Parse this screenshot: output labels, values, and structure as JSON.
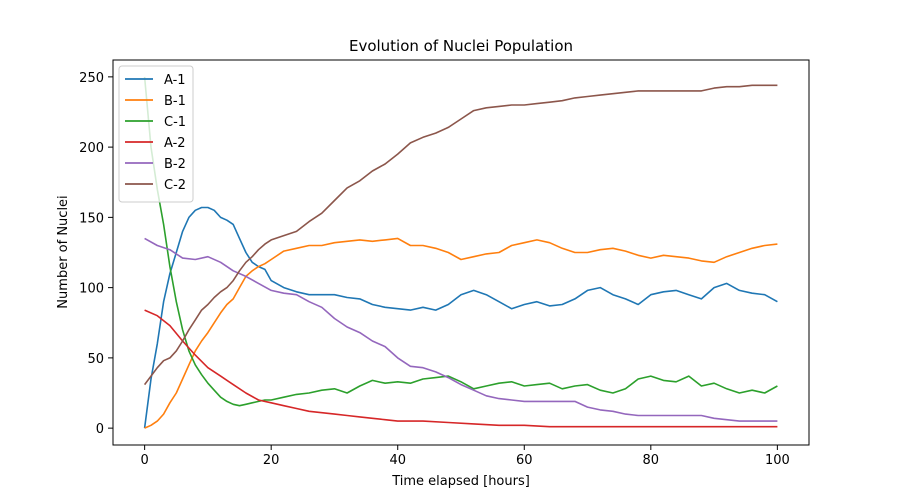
{
  "chart_data": {
    "type": "line",
    "title": "Evolution of Nuclei Population",
    "xlabel": "Time elapsed [hours]",
    "ylabel": "Number of Nuclei",
    "xlim": [
      -5,
      105
    ],
    "ylim": [
      -12,
      262
    ],
    "xticks": [
      0,
      20,
      40,
      60,
      80,
      100
    ],
    "yticks": [
      0,
      50,
      100,
      150,
      200,
      250
    ],
    "grid": false,
    "legend_position": "top-left",
    "series": [
      {
        "name": "A-1",
        "color": "#1f77b4",
        "points": [
          [
            0,
            0
          ],
          [
            1,
            35
          ],
          [
            2,
            60
          ],
          [
            3,
            90
          ],
          [
            4,
            110
          ],
          [
            5,
            125
          ],
          [
            6,
            140
          ],
          [
            7,
            150
          ],
          [
            8,
            155
          ],
          [
            9,
            157
          ],
          [
            10,
            157
          ],
          [
            11,
            155
          ],
          [
            12,
            150
          ],
          [
            13,
            148
          ],
          [
            14,
            145
          ],
          [
            15,
            135
          ],
          [
            16,
            125
          ],
          [
            17,
            118
          ],
          [
            18,
            115
          ],
          [
            19,
            113
          ],
          [
            20,
            105
          ],
          [
            22,
            100
          ],
          [
            24,
            97
          ],
          [
            26,
            95
          ],
          [
            28,
            95
          ],
          [
            30,
            95
          ],
          [
            32,
            93
          ],
          [
            34,
            92
          ],
          [
            36,
            88
          ],
          [
            38,
            86
          ],
          [
            40,
            85
          ],
          [
            42,
            84
          ],
          [
            44,
            86
          ],
          [
            46,
            84
          ],
          [
            48,
            88
          ],
          [
            50,
            95
          ],
          [
            52,
            98
          ],
          [
            54,
            95
          ],
          [
            56,
            90
          ],
          [
            58,
            85
          ],
          [
            60,
            88
          ],
          [
            62,
            90
          ],
          [
            64,
            87
          ],
          [
            66,
            88
          ],
          [
            68,
            92
          ],
          [
            70,
            98
          ],
          [
            72,
            100
          ],
          [
            74,
            95
          ],
          [
            76,
            92
          ],
          [
            78,
            88
          ],
          [
            80,
            95
          ],
          [
            82,
            97
          ],
          [
            84,
            98
          ],
          [
            86,
            95
          ],
          [
            88,
            92
          ],
          [
            90,
            100
          ],
          [
            92,
            103
          ],
          [
            94,
            98
          ],
          [
            96,
            96
          ],
          [
            98,
            95
          ],
          [
            100,
            90
          ]
        ]
      },
      {
        "name": "B-1",
        "color": "#ff7f0e",
        "points": [
          [
            0,
            0
          ],
          [
            1,
            2
          ],
          [
            2,
            5
          ],
          [
            3,
            10
          ],
          [
            4,
            18
          ],
          [
            5,
            25
          ],
          [
            6,
            35
          ],
          [
            7,
            45
          ],
          [
            8,
            55
          ],
          [
            9,
            62
          ],
          [
            10,
            68
          ],
          [
            11,
            75
          ],
          [
            12,
            82
          ],
          [
            13,
            88
          ],
          [
            14,
            92
          ],
          [
            15,
            100
          ],
          [
            16,
            108
          ],
          [
            17,
            112
          ],
          [
            18,
            115
          ],
          [
            19,
            117
          ],
          [
            20,
            120
          ],
          [
            22,
            126
          ],
          [
            24,
            128
          ],
          [
            26,
            130
          ],
          [
            28,
            130
          ],
          [
            30,
            132
          ],
          [
            32,
            133
          ],
          [
            34,
            134
          ],
          [
            36,
            133
          ],
          [
            38,
            134
          ],
          [
            40,
            135
          ],
          [
            42,
            130
          ],
          [
            44,
            130
          ],
          [
            46,
            128
          ],
          [
            48,
            125
          ],
          [
            50,
            120
          ],
          [
            52,
            122
          ],
          [
            54,
            124
          ],
          [
            56,
            125
          ],
          [
            58,
            130
          ],
          [
            60,
            132
          ],
          [
            62,
            134
          ],
          [
            64,
            132
          ],
          [
            66,
            128
          ],
          [
            68,
            125
          ],
          [
            70,
            125
          ],
          [
            72,
            127
          ],
          [
            74,
            128
          ],
          [
            76,
            126
          ],
          [
            78,
            123
          ],
          [
            80,
            121
          ],
          [
            82,
            123
          ],
          [
            84,
            122
          ],
          [
            86,
            121
          ],
          [
            88,
            119
          ],
          [
            90,
            118
          ],
          [
            92,
            122
          ],
          [
            94,
            125
          ],
          [
            96,
            128
          ],
          [
            98,
            130
          ],
          [
            100,
            131
          ]
        ]
      },
      {
        "name": "C-1",
        "color": "#2ca02c",
        "points": [
          [
            0,
            250
          ],
          [
            1,
            200
          ],
          [
            2,
            170
          ],
          [
            3,
            145
          ],
          [
            4,
            115
          ],
          [
            5,
            90
          ],
          [
            6,
            70
          ],
          [
            7,
            55
          ],
          [
            8,
            45
          ],
          [
            9,
            38
          ],
          [
            10,
            32
          ],
          [
            11,
            27
          ],
          [
            12,
            22
          ],
          [
            13,
            19
          ],
          [
            14,
            17
          ],
          [
            15,
            16
          ],
          [
            16,
            17
          ],
          [
            17,
            18
          ],
          [
            18,
            19
          ],
          [
            19,
            20
          ],
          [
            20,
            20
          ],
          [
            22,
            22
          ],
          [
            24,
            24
          ],
          [
            26,
            25
          ],
          [
            28,
            27
          ],
          [
            30,
            28
          ],
          [
            32,
            25
          ],
          [
            34,
            30
          ],
          [
            36,
            34
          ],
          [
            38,
            32
          ],
          [
            40,
            33
          ],
          [
            42,
            32
          ],
          [
            44,
            35
          ],
          [
            46,
            36
          ],
          [
            48,
            37
          ],
          [
            50,
            33
          ],
          [
            52,
            28
          ],
          [
            54,
            30
          ],
          [
            56,
            32
          ],
          [
            58,
            33
          ],
          [
            60,
            30
          ],
          [
            62,
            31
          ],
          [
            64,
            32
          ],
          [
            66,
            28
          ],
          [
            68,
            30
          ],
          [
            70,
            31
          ],
          [
            72,
            27
          ],
          [
            74,
            25
          ],
          [
            76,
            28
          ],
          [
            78,
            35
          ],
          [
            80,
            37
          ],
          [
            82,
            34
          ],
          [
            84,
            33
          ],
          [
            86,
            37
          ],
          [
            88,
            30
          ],
          [
            90,
            32
          ],
          [
            92,
            28
          ],
          [
            94,
            25
          ],
          [
            96,
            27
          ],
          [
            98,
            25
          ],
          [
            100,
            30
          ]
        ]
      },
      {
        "name": "A-2",
        "color": "#d62728",
        "points": [
          [
            0,
            84
          ],
          [
            2,
            80
          ],
          [
            4,
            73
          ],
          [
            6,
            62
          ],
          [
            8,
            52
          ],
          [
            10,
            43
          ],
          [
            12,
            37
          ],
          [
            14,
            31
          ],
          [
            16,
            25
          ],
          [
            18,
            20
          ],
          [
            20,
            18
          ],
          [
            22,
            16
          ],
          [
            24,
            14
          ],
          [
            26,
            12
          ],
          [
            28,
            11
          ],
          [
            30,
            10
          ],
          [
            32,
            9
          ],
          [
            34,
            8
          ],
          [
            36,
            7
          ],
          [
            38,
            6
          ],
          [
            40,
            5
          ],
          [
            44,
            5
          ],
          [
            48,
            4
          ],
          [
            52,
            3
          ],
          [
            56,
            2
          ],
          [
            60,
            2
          ],
          [
            64,
            1
          ],
          [
            70,
            1
          ],
          [
            80,
            1
          ],
          [
            90,
            1
          ],
          [
            100,
            1
          ]
        ]
      },
      {
        "name": "B-2",
        "color": "#9467bd",
        "points": [
          [
            0,
            135
          ],
          [
            2,
            130
          ],
          [
            4,
            127
          ],
          [
            6,
            121
          ],
          [
            8,
            120
          ],
          [
            10,
            122
          ],
          [
            12,
            118
          ],
          [
            14,
            112
          ],
          [
            16,
            108
          ],
          [
            18,
            103
          ],
          [
            20,
            98
          ],
          [
            22,
            96
          ],
          [
            24,
            95
          ],
          [
            26,
            90
          ],
          [
            28,
            86
          ],
          [
            30,
            78
          ],
          [
            32,
            72
          ],
          [
            34,
            68
          ],
          [
            36,
            62
          ],
          [
            38,
            58
          ],
          [
            40,
            50
          ],
          [
            42,
            44
          ],
          [
            44,
            43
          ],
          [
            46,
            40
          ],
          [
            48,
            36
          ],
          [
            50,
            31
          ],
          [
            52,
            27
          ],
          [
            54,
            23
          ],
          [
            56,
            21
          ],
          [
            58,
            20
          ],
          [
            60,
            19
          ],
          [
            64,
            19
          ],
          [
            68,
            19
          ],
          [
            70,
            15
          ],
          [
            72,
            13
          ],
          [
            74,
            12
          ],
          [
            76,
            10
          ],
          [
            78,
            9
          ],
          [
            80,
            9
          ],
          [
            84,
            9
          ],
          [
            88,
            9
          ],
          [
            90,
            7
          ],
          [
            92,
            6
          ],
          [
            94,
            5
          ],
          [
            100,
            5
          ]
        ]
      },
      {
        "name": "C-2",
        "color": "#8c564b",
        "points": [
          [
            0,
            31
          ],
          [
            1,
            37
          ],
          [
            2,
            43
          ],
          [
            3,
            48
          ],
          [
            4,
            50
          ],
          [
            5,
            55
          ],
          [
            6,
            62
          ],
          [
            7,
            70
          ],
          [
            8,
            77
          ],
          [
            9,
            84
          ],
          [
            10,
            88
          ],
          [
            11,
            93
          ],
          [
            12,
            97
          ],
          [
            13,
            100
          ],
          [
            14,
            105
          ],
          [
            15,
            112
          ],
          [
            16,
            118
          ],
          [
            17,
            122
          ],
          [
            18,
            127
          ],
          [
            19,
            131
          ],
          [
            20,
            134
          ],
          [
            22,
            137
          ],
          [
            24,
            140
          ],
          [
            26,
            147
          ],
          [
            28,
            153
          ],
          [
            30,
            162
          ],
          [
            32,
            171
          ],
          [
            34,
            176
          ],
          [
            36,
            183
          ],
          [
            38,
            188
          ],
          [
            40,
            195
          ],
          [
            42,
            203
          ],
          [
            44,
            207
          ],
          [
            46,
            210
          ],
          [
            48,
            214
          ],
          [
            50,
            220
          ],
          [
            52,
            226
          ],
          [
            54,
            228
          ],
          [
            56,
            229
          ],
          [
            58,
            230
          ],
          [
            60,
            230
          ],
          [
            62,
            231
          ],
          [
            64,
            232
          ],
          [
            66,
            233
          ],
          [
            68,
            235
          ],
          [
            70,
            236
          ],
          [
            72,
            237
          ],
          [
            74,
            238
          ],
          [
            76,
            239
          ],
          [
            78,
            240
          ],
          [
            80,
            240
          ],
          [
            84,
            240
          ],
          [
            88,
            240
          ],
          [
            90,
            242
          ],
          [
            92,
            243
          ],
          [
            94,
            243
          ],
          [
            96,
            244
          ],
          [
            100,
            244
          ]
        ]
      }
    ]
  }
}
